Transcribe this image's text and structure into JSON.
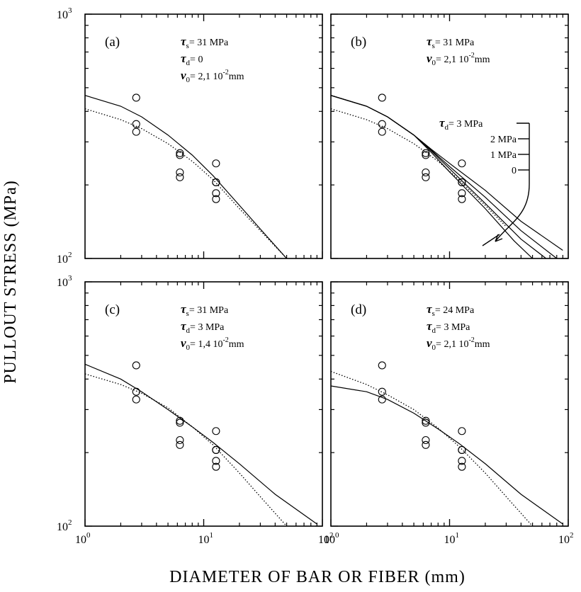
{
  "figure": {
    "ylabel": "PULLOUT STRESS (MPa)",
    "xlabel": "DIAMETER OF BAR OR FIBER (mm)"
  },
  "chart_data": [
    {
      "type": "line",
      "panel": "(a)",
      "xscale": "log",
      "yscale": "log",
      "xlim": [
        1,
        100
      ],
      "ylim": [
        100,
        1000
      ],
      "annotations": [
        {
          "sym": "τ",
          "sub": "s",
          "text": "= 31 MPa"
        },
        {
          "sym": "τ",
          "sub": "d",
          "text": "= 0"
        },
        {
          "sym": "v",
          "sub": "0",
          "text": "= 2,1 10",
          "sup": "-2",
          "tail": "mm"
        }
      ],
      "scatter": {
        "x": [
          2.7,
          2.7,
          2.7,
          6.3,
          6.3,
          6.3,
          6.3,
          12.7,
          12.7,
          12.7,
          12.7,
          12.7
        ],
        "y": [
          455,
          355,
          330,
          270,
          265,
          225,
          215,
          245,
          205,
          185,
          175,
          205
        ]
      },
      "series": [
        {
          "style": "solid",
          "x": [
            1,
            2,
            3,
            5,
            8,
            12,
            20,
            30,
            50
          ],
          "y": [
            465,
            420,
            380,
            320,
            265,
            218,
            165,
            132,
            100
          ]
        },
        {
          "style": "dotted",
          "x": [
            1,
            2,
            3,
            5,
            8,
            12,
            20,
            30,
            50
          ],
          "y": [
            410,
            370,
            340,
            295,
            250,
            210,
            160,
            130,
            100
          ]
        }
      ]
    },
    {
      "type": "line",
      "panel": "(b)",
      "xscale": "log",
      "yscale": "log",
      "xlim": [
        1,
        100
      ],
      "ylim": [
        100,
        1000
      ],
      "annotations": [
        {
          "sym": "τ",
          "sub": "s",
          "text": "= 31 MPa"
        },
        {
          "sym": "v",
          "sub": "0",
          "text": "= 2,1 10",
          "sup": "-2",
          "tail": "mm"
        }
      ],
      "ladder": {
        "prefix_sym": "τ",
        "prefix_sub": "d",
        "labels": [
          "= 3 MPa",
          "2 MPa",
          "1 MPa",
          "0"
        ]
      },
      "scatter": {
        "x": [
          2.7,
          2.7,
          2.7,
          6.3,
          6.3,
          6.3,
          6.3,
          12.7,
          12.7,
          12.7,
          12.7,
          12.7
        ],
        "y": [
          455,
          355,
          330,
          270,
          265,
          225,
          215,
          245,
          205,
          185,
          175,
          205
        ]
      },
      "series": [
        {
          "name": "3 MPa",
          "style": "solid",
          "x": [
            1,
            2,
            3,
            5,
            7,
            10,
            20,
            40,
            90
          ],
          "y": [
            465,
            420,
            380,
            320,
            280,
            245,
            190,
            142,
            108
          ]
        },
        {
          "name": "2 MPa",
          "style": "solid",
          "x": [
            1,
            2,
            3,
            5,
            7,
            10,
            20,
            40,
            80
          ],
          "y": [
            465,
            420,
            380,
            320,
            278,
            238,
            178,
            130,
            100
          ]
        },
        {
          "name": "1 MPa",
          "style": "solid",
          "x": [
            1,
            2,
            3,
            5,
            7,
            10,
            20,
            40,
            65
          ],
          "y": [
            465,
            420,
            380,
            320,
            276,
            233,
            168,
            120,
            100
          ]
        },
        {
          "name": "0",
          "style": "solid",
          "x": [
            1,
            2,
            3,
            5,
            7,
            10,
            20,
            35,
            50
          ],
          "y": [
            465,
            420,
            380,
            320,
            272,
            226,
            160,
            118,
            100
          ]
        },
        {
          "style": "dotted",
          "x": [
            1,
            2,
            3,
            5,
            8,
            12,
            20,
            30
          ],
          "y": [
            410,
            370,
            340,
            295,
            250,
            210,
            165,
            135
          ]
        }
      ]
    },
    {
      "type": "line",
      "panel": "(c)",
      "xscale": "log",
      "yscale": "log",
      "xlim": [
        1,
        100
      ],
      "ylim": [
        100,
        1000
      ],
      "annotations": [
        {
          "sym": "τ",
          "sub": "s",
          "text": "= 31 MPa"
        },
        {
          "sym": "τ",
          "sub": "d",
          "text": "= 3 MPa"
        },
        {
          "sym": "v",
          "sub": "0",
          "text": "= 1,4 10",
          "sup": "-2",
          "tail": "mm"
        }
      ],
      "scatter": {
        "x": [
          2.7,
          2.7,
          2.7,
          6.3,
          6.3,
          6.3,
          6.3,
          12.7,
          12.7,
          12.7,
          12.7,
          12.7
        ],
        "y": [
          455,
          355,
          330,
          270,
          265,
          225,
          215,
          245,
          205,
          185,
          175,
          205
        ]
      },
      "series": [
        {
          "style": "solid",
          "x": [
            1,
            2,
            3,
            5,
            8,
            12,
            20,
            40,
            90
          ],
          "y": [
            460,
            400,
            355,
            300,
            255,
            220,
            180,
            135,
            102
          ]
        },
        {
          "style": "dotted",
          "x": [
            1,
            2,
            3,
            5,
            8,
            12,
            20,
            30,
            50
          ],
          "y": [
            420,
            380,
            350,
            305,
            255,
            215,
            165,
            132,
            100
          ]
        }
      ]
    },
    {
      "type": "line",
      "panel": "(d)",
      "xscale": "log",
      "yscale": "log",
      "xlim": [
        1,
        100
      ],
      "ylim": [
        100,
        1000
      ],
      "annotations": [
        {
          "sym": "τ",
          "sub": "s",
          "text": "= 24 MPa"
        },
        {
          "sym": "τ",
          "sub": "d",
          "text": "= 3 MPa"
        },
        {
          "sym": "v",
          "sub": "0",
          "text": "= 2,1 10",
          "sup": "-2",
          "tail": "mm"
        }
      ],
      "scatter": {
        "x": [
          2.7,
          2.7,
          2.7,
          6.3,
          6.3,
          6.3,
          6.3,
          12.7,
          12.7,
          12.7,
          12.7,
          12.7
        ],
        "y": [
          455,
          355,
          330,
          270,
          265,
          225,
          215,
          245,
          205,
          185,
          175,
          205
        ]
      },
      "series": [
        {
          "style": "solid",
          "x": [
            1,
            2,
            3,
            5,
            8,
            12,
            20,
            40,
            90
          ],
          "y": [
            375,
            355,
            330,
            290,
            250,
            218,
            180,
            135,
            102
          ]
        },
        {
          "style": "dotted",
          "x": [
            1,
            2,
            3,
            5,
            8,
            12,
            20,
            30,
            50
          ],
          "y": [
            430,
            380,
            345,
            300,
            252,
            212,
            165,
            132,
            100
          ]
        }
      ]
    }
  ]
}
